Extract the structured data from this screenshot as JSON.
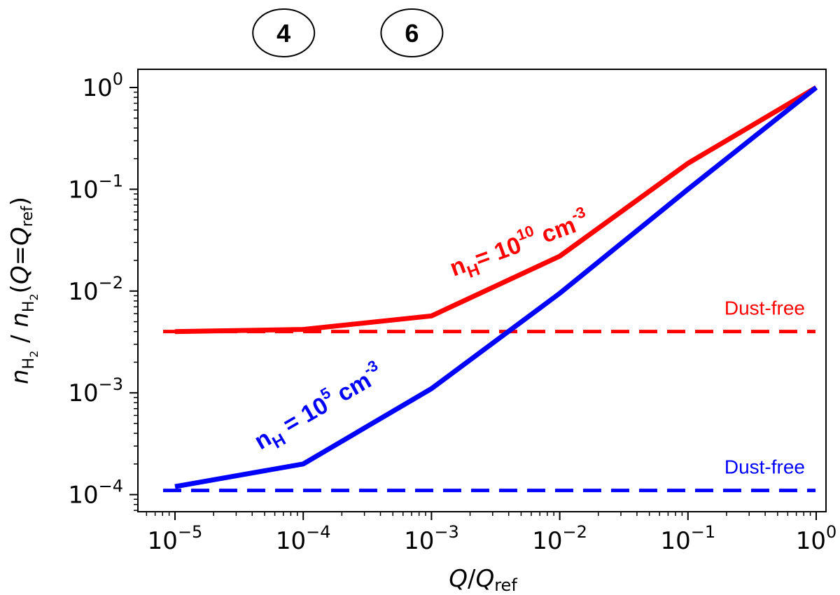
{
  "chart_data": {
    "type": "line",
    "x_scale": "log",
    "y_scale": "log",
    "xlim": [
      5e-06,
      1
    ],
    "ylim": [
      7e-05,
      2
    ],
    "x_tick_values": [
      1e-05,
      0.0001,
      0.001,
      0.01,
      0.1,
      1
    ],
    "y_tick_values": [
      0.0001,
      0.001,
      0.01,
      0.1,
      1
    ],
    "x_tick_labels": [
      {
        "base": "10",
        "exp": "−5"
      },
      {
        "base": "10",
        "exp": "−4"
      },
      {
        "base": "10",
        "exp": "−3"
      },
      {
        "base": "10",
        "exp": "−2"
      },
      {
        "base": "10",
        "exp": "−1"
      },
      {
        "base": "10",
        "exp": "0"
      }
    ],
    "y_tick_labels": [
      {
        "base": "10",
        "exp": "−4"
      },
      {
        "base": "10",
        "exp": "−3"
      },
      {
        "base": "10",
        "exp": "−2"
      },
      {
        "base": "10",
        "exp": "−1"
      },
      {
        "base": "10",
        "exp": "0"
      }
    ],
    "xlabel": "Q/Q_ref",
    "ylabel": "n_H2 / n_H2(Q=Q_ref)",
    "grid": false,
    "series": [
      {
        "name": "n_H = 10^10 cm-3",
        "color": "#ff0000",
        "style": "solid",
        "x": [
          1e-05,
          0.0001,
          0.001,
          0.01,
          0.1,
          1
        ],
        "y": [
          0.004,
          0.0042,
          0.0057,
          0.022,
          0.18,
          1.0
        ]
      },
      {
        "name": "n_H = 10^5 cm-3",
        "color": "#0000ff",
        "style": "solid",
        "x": [
          1e-05,
          0.0001,
          0.001,
          0.01,
          0.1,
          1
        ],
        "y": [
          0.00012,
          0.0002,
          0.0011,
          0.0095,
          0.1,
          1.0
        ]
      }
    ],
    "reference_lines": [
      {
        "label": "Dust-free",
        "color": "#ff0000",
        "style": "dashed",
        "y": 0.004
      },
      {
        "label": "Dust-free",
        "color": "#0000ff",
        "style": "dashed",
        "y": 0.00011
      }
    ],
    "annotations": {
      "red": {
        "prefix": "n",
        "sub": "H",
        "mid": "= 10",
        "sup": "10",
        "suffix": " cm",
        "sup2": "-3",
        "color": "#ff0000"
      },
      "blue": {
        "prefix": "n",
        "sub": "H",
        "mid": " = 10",
        "sup": "5",
        "suffix": " cm",
        "sup2": "-3",
        "color": "#0000ff"
      }
    },
    "markers": [
      {
        "label": "4",
        "x": 0.0001
      },
      {
        "label": "6",
        "x": 0.001
      }
    ]
  }
}
